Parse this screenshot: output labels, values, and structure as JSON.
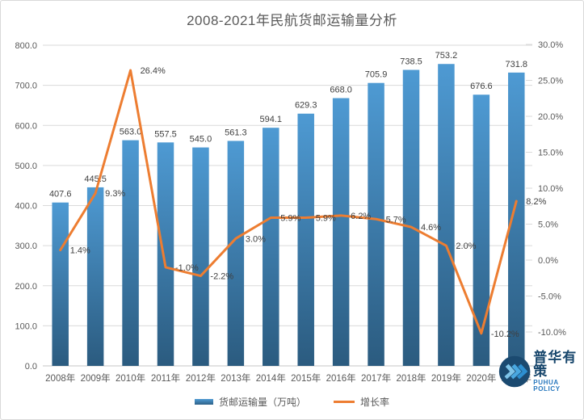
{
  "title": "2008-2021年民航货邮运输量分析",
  "legend": {
    "bar_label": "货邮运输量（万吨）",
    "line_label": "增长率"
  },
  "watermark": {
    "cn": "普华有策",
    "en": "PUHUA POLICY"
  },
  "colors": {
    "bar_top": "#4e9ad3",
    "bar_bottom": "#2b5b7f",
    "line": "#ed7d31",
    "title_text": "#595959",
    "axis_text": "#595959",
    "data_label_text": "#3f3f3f",
    "gridline": "#dadada",
    "axis_line": "#c6c6c6",
    "logo_navy": "#1b4a70",
    "logo_chevron": "#4aa8e0",
    "logo_en_blue": "#2878be"
  },
  "chart_data": {
    "type": "bar",
    "subtype": "combo-bar-line-dual-axis",
    "title": "2008-2021年民航货邮运输量分析",
    "categories": [
      "2008年",
      "2009年",
      "2010年",
      "2011年",
      "2012年",
      "2013年",
      "2014年",
      "2015年",
      "2016年",
      "2017年",
      "2018年",
      "2019年",
      "2020年",
      "2021年"
    ],
    "series": [
      {
        "name": "货邮运输量（万吨）",
        "type": "bar",
        "axis": "left",
        "values": [
          407.6,
          445.5,
          563.0,
          557.5,
          545.0,
          561.3,
          594.1,
          629.3,
          668.0,
          705.9,
          738.5,
          753.2,
          676.6,
          731.8
        ],
        "labels": [
          "407.6",
          "445.5",
          "563.0",
          "557.5",
          "545.0",
          "561.3",
          "594.1",
          "629.3",
          "668.0",
          "705.9",
          "738.5",
          "753.2",
          "676.6",
          "731.8"
        ]
      },
      {
        "name": "增长率",
        "type": "line",
        "axis": "right",
        "values": [
          1.4,
          9.3,
          26.4,
          -1.0,
          -2.2,
          3.0,
          5.9,
          5.9,
          6.2,
          5.7,
          4.6,
          2.0,
          -10.2,
          8.2
        ],
        "labels": [
          "1.4%",
          "9.3%",
          "26.4%",
          "-1.0%",
          "-2.2%",
          "3.0%",
          "5.9%",
          "5.9%",
          "6.2%",
          "5.7%",
          "4.6%",
          "2.0%",
          "-10.2%",
          "8.2%"
        ]
      }
    ],
    "left_axis": {
      "min": 0,
      "max": 800,
      "step": 100,
      "tick_labels": [
        "0.0",
        "100.0",
        "200.0",
        "300.0",
        "400.0",
        "500.0",
        "600.0",
        "700.0",
        "800.0"
      ]
    },
    "right_axis": {
      "min": -10,
      "max": 30,
      "step": 5,
      "tick_labels": [
        "-10.0%",
        "-5.0%",
        "0.0%",
        "5.0%",
        "10.0%",
        "15.0%",
        "20.0%",
        "25.0%",
        "30.0%"
      ]
    },
    "grid": true,
    "legend_position": "bottom",
    "ylabel": "",
    "xlabel": ""
  }
}
